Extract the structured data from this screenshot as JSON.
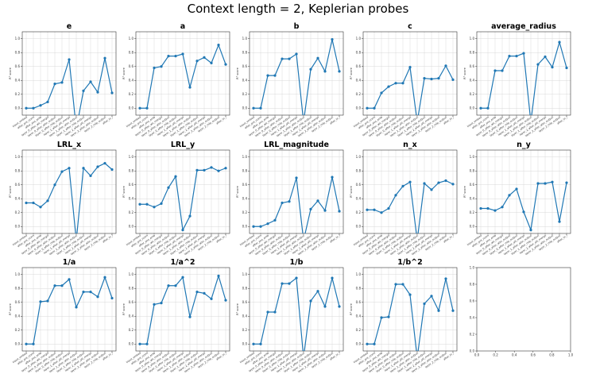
{
  "figure": {
    "title": "Context length = 2, Keplerian probes"
  },
  "colors": {
    "line": "#1f77b4",
    "grid": "#d9d9d9",
    "axes": "#333333"
  },
  "chart_data": {
    "type": "line",
    "ylabel": "R² score",
    "ylim": [
      -0.1,
      1.1
    ],
    "yticks": [
      0.0,
      0.2,
      0.4,
      0.6,
      0.8,
      1.0
    ],
    "grid": true,
    "x": [
      "input_embed",
      "after_pre_norm",
      "after_pos_emb",
      "layer_0_after_att_mergel",
      "layer_0_after_attn_output",
      "layer_0_after_mlp_output",
      "layer_1_after_att_merge",
      "layer_1_after_attn_output",
      "layer_1_after_mlp_output",
      "layer_2_after_att_merge",
      "layer_2_after_attn_output",
      "layer_2_mlp_output",
      "after_ln_f"
    ],
    "empty_panel": {
      "xticks": [
        "0.0",
        "0.2",
        "0.4",
        "0.6",
        "0.8",
        "1.0"
      ],
      "yticks": [
        "0.0",
        "0.2",
        "0.4",
        "0.6",
        "0.8",
        "1.0"
      ]
    },
    "panels": [
      {
        "title": "e",
        "values": [
          0.0,
          0.0,
          0.04,
          0.09,
          0.35,
          0.37,
          0.7,
          -0.3,
          0.25,
          0.38,
          0.23,
          0.72,
          0.22
        ]
      },
      {
        "title": "a",
        "values": [
          0.0,
          0.0,
          0.58,
          0.6,
          0.75,
          0.75,
          0.78,
          0.3,
          0.68,
          0.73,
          0.65,
          0.91,
          0.63
        ]
      },
      {
        "title": "b",
        "values": [
          0.0,
          0.0,
          0.47,
          0.47,
          0.71,
          0.71,
          0.78,
          -0.2,
          0.56,
          0.72,
          0.53,
          0.99,
          0.53
        ]
      },
      {
        "title": "c",
        "values": [
          0.0,
          0.0,
          0.22,
          0.31,
          0.36,
          0.36,
          0.59,
          -0.2,
          0.43,
          0.42,
          0.43,
          0.61,
          0.41
        ]
      },
      {
        "title": "average_radius",
        "values": [
          0.0,
          0.0,
          0.54,
          0.54,
          0.75,
          0.75,
          0.79,
          -0.2,
          0.63,
          0.74,
          0.59,
          0.95,
          0.58
        ]
      },
      {
        "title": "LRL_x",
        "values": [
          0.34,
          0.34,
          0.28,
          0.37,
          0.6,
          0.79,
          0.84,
          -0.2,
          0.84,
          0.73,
          0.86,
          0.91,
          0.82
        ]
      },
      {
        "title": "LRL_y",
        "values": [
          0.32,
          0.32,
          0.28,
          0.33,
          0.56,
          0.72,
          -0.05,
          0.15,
          0.81,
          0.81,
          0.85,
          0.8,
          0.84
        ]
      },
      {
        "title": "LRL_magnitude",
        "values": [
          0.0,
          0.0,
          0.04,
          0.09,
          0.34,
          0.36,
          0.7,
          -0.2,
          0.25,
          0.37,
          0.23,
          0.71,
          0.22
        ]
      },
      {
        "title": "n_x",
        "values": [
          0.24,
          0.24,
          0.2,
          0.26,
          0.45,
          0.58,
          0.64,
          -0.2,
          0.62,
          0.53,
          0.63,
          0.66,
          0.61
        ]
      },
      {
        "title": "n_y",
        "values": [
          0.26,
          0.26,
          0.23,
          0.28,
          0.45,
          0.54,
          0.21,
          -0.05,
          0.62,
          0.62,
          0.64,
          0.07,
          0.63
        ]
      },
      {
        "title": "1/a",
        "values": [
          0.0,
          0.0,
          0.61,
          0.62,
          0.84,
          0.84,
          0.93,
          0.53,
          0.75,
          0.75,
          0.68,
          0.96,
          0.66
        ]
      },
      {
        "title": "1/a^2",
        "values": [
          0.0,
          0.0,
          0.57,
          0.59,
          0.84,
          0.84,
          0.96,
          0.39,
          0.75,
          0.73,
          0.65,
          0.98,
          0.63
        ]
      },
      {
        "title": "1/b",
        "values": [
          0.0,
          0.0,
          0.46,
          0.46,
          0.87,
          0.87,
          0.95,
          -0.2,
          0.62,
          0.76,
          0.54,
          0.95,
          0.54
        ]
      },
      {
        "title": "1/b^2",
        "values": [
          0.0,
          0.0,
          0.38,
          0.39,
          0.86,
          0.86,
          0.71,
          -0.2,
          0.58,
          0.69,
          0.48,
          0.94,
          0.48
        ]
      }
    ]
  }
}
